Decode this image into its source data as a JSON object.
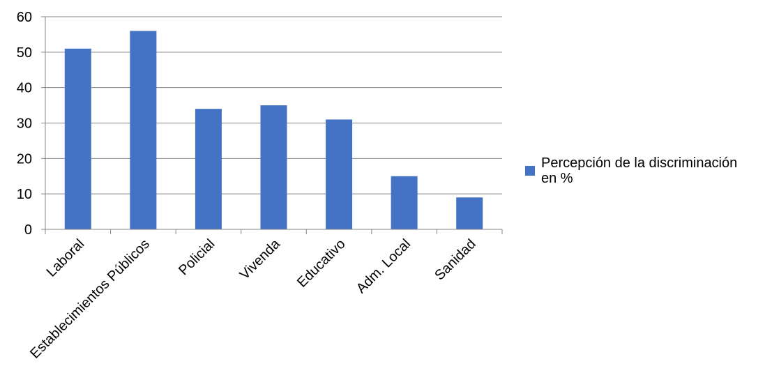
{
  "chart_data": {
    "type": "bar",
    "title": "",
    "xlabel": "",
    "ylabel": "",
    "categories": [
      "Laboral",
      "Establecimientos Públicos",
      "Policial",
      "Vivenda",
      "Educativo",
      "Adm. Local",
      "Sanidad"
    ],
    "series": [
      {
        "name": "Percepción de la discriminación en %",
        "values": [
          51,
          56,
          34,
          35,
          31,
          15,
          9
        ],
        "color": "#4472C4"
      }
    ],
    "ylim": [
      0,
      60
    ],
    "yticks": [
      0,
      10,
      20,
      30,
      40,
      50,
      60
    ],
    "grid": true,
    "legend_position": "right",
    "legend_lines": [
      "Percepción de la discriminación",
      "en %"
    ]
  }
}
